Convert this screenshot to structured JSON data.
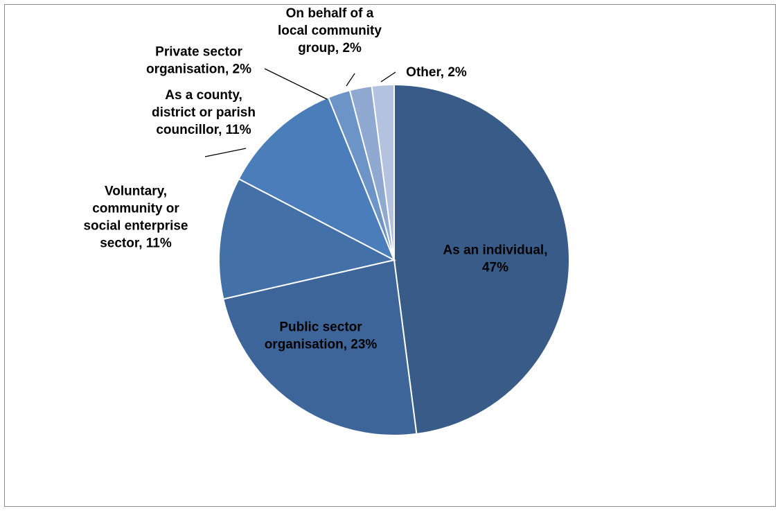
{
  "chart_data": {
    "type": "pie",
    "title": "",
    "start_angle_deg": 0,
    "direction": "clockwise",
    "slices": [
      {
        "label": "As an individual",
        "value": 47,
        "display": [
          "As an individual,",
          "47%"
        ],
        "color": "#385b87",
        "label_inside": true
      },
      {
        "label": "Public sector organisation",
        "value": 23,
        "display": [
          "Public sector",
          "organisation, 23%"
        ],
        "color": "#3d6599",
        "label_inside": true
      },
      {
        "label": "Voluntary, community or social enterprise sector",
        "value": 11,
        "display": [
          "Voluntary,",
          "community or",
          "social enterprise",
          "sector, 11%"
        ],
        "color": "#4470a8",
        "label_inside": false
      },
      {
        "label": "As a county, district or parish councillor",
        "value": 11,
        "display": [
          "As a county,",
          "district or parish",
          "councillor, 11%"
        ],
        "color": "#4b7dba",
        "label_inside": false
      },
      {
        "label": "Private sector organisation",
        "value": 2,
        "display": [
          "Private sector",
          "organisation, 2%"
        ],
        "color": "#6d94c6",
        "label_inside": false
      },
      {
        "label": "On behalf of a local community group",
        "value": 2,
        "display": [
          "On behalf of a",
          "local community",
          "group, 2%"
        ],
        "color": "#8fa9d1",
        "label_inside": false
      },
      {
        "label": "Other",
        "value": 2,
        "display": [
          "Other, 2%"
        ],
        "color": "#b3c2de",
        "label_inside": false
      }
    ]
  }
}
